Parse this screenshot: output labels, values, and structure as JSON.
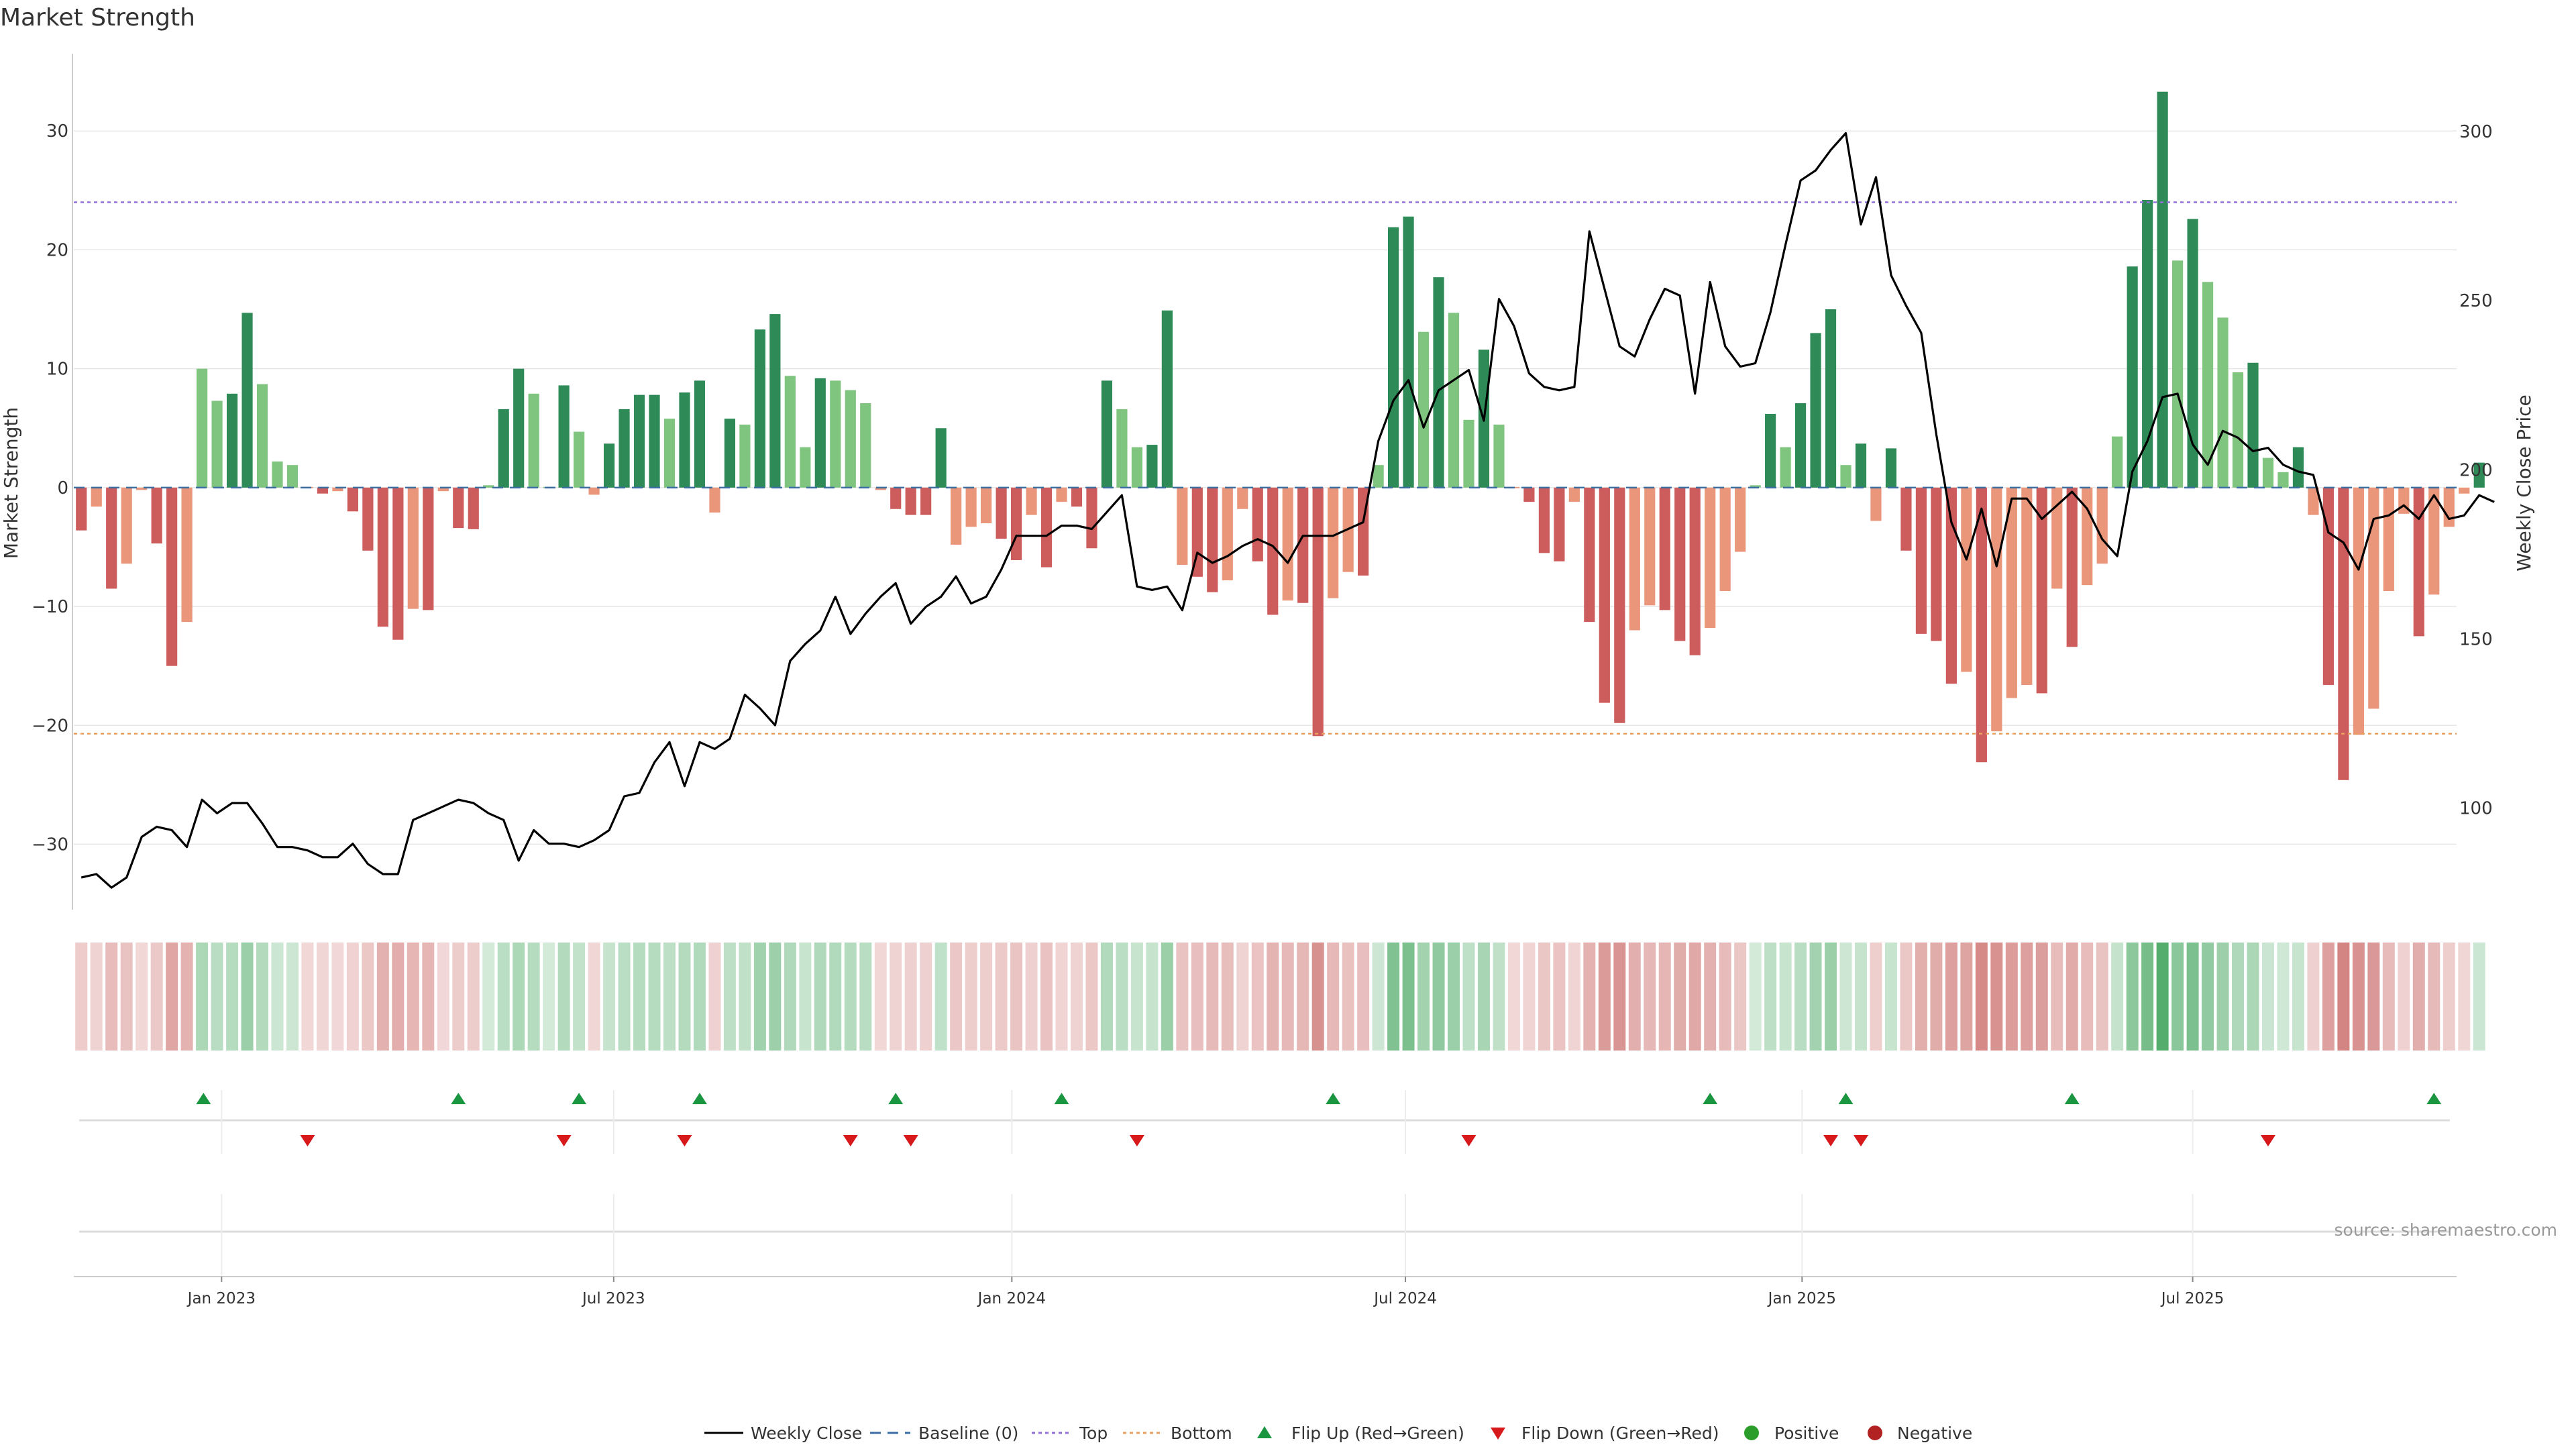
{
  "chart_data": {
    "type": "bar",
    "title": "Market Strength",
    "ylabel": "Market Strength",
    "y2label": "Weekly Close Price",
    "ylim": [
      -35.5,
      36.5
    ],
    "y2lim": [
      70,
      323
    ],
    "yticks": [
      30,
      20,
      10,
      0,
      -10,
      -20,
      -30
    ],
    "ytick_labels": [
      "30",
      "20",
      "10",
      "0",
      "−10",
      "−20",
      "−30"
    ],
    "y2ticks": [
      300,
      250,
      200,
      150,
      100
    ],
    "y2tick_labels": [
      "300",
      "250",
      "200",
      "150",
      "100"
    ],
    "top_threshold": 24,
    "bottom_threshold": -20.7,
    "x_start_week_index": 0,
    "x_end_week_index": 157,
    "date_ticks": [
      {
        "label": "Jan 2023",
        "week": 9.3
      },
      {
        "label": "Jul 2023",
        "week": 35.3
      },
      {
        "label": "Jan 2024",
        "week": 61.7
      },
      {
        "label": "Jul 2024",
        "week": 87.8
      },
      {
        "label": "Jan 2025",
        "week": 114.1
      },
      {
        "label": "Jul 2025",
        "week": 140.0
      }
    ],
    "strength": [
      -3.6,
      -1.6,
      -8.5,
      -6.4,
      -0.2,
      -4.7,
      -15.0,
      -11.3,
      10.0,
      7.3,
      7.9,
      14.7,
      8.7,
      2.2,
      1.9,
      -0.1,
      -0.5,
      -0.3,
      -2.0,
      -5.3,
      -11.7,
      -12.8,
      -10.2,
      -10.3,
      -0.3,
      -3.4,
      -3.5,
      0.2,
      6.6,
      10.0,
      7.9,
      0.1,
      8.6,
      4.7,
      -0.6,
      3.7,
      6.6,
      7.8,
      7.8,
      5.8,
      8.0,
      9.0,
      -2.1,
      5.8,
      5.3,
      13.3,
      14.6,
      9.4,
      3.4,
      9.2,
      9.0,
      8.2,
      7.1,
      -0.2,
      -1.8,
      -2.3,
      -2.3,
      5.0,
      -4.8,
      -3.3,
      -3.0,
      -4.3,
      -6.1,
      -2.3,
      -6.7,
      -1.2,
      -1.6,
      -5.1,
      9.0,
      6.6,
      3.4,
      3.6,
      14.9,
      -6.5,
      -7.5,
      -8.8,
      -7.8,
      -1.8,
      -6.2,
      -10.7,
      -9.5,
      -9.7,
      -20.9,
      -9.3,
      -7.1,
      -7.4,
      1.9,
      21.9,
      22.8,
      13.1,
      17.7,
      14.7,
      5.7,
      11.6,
      5.3,
      -0.1,
      -1.2,
      -5.5,
      -6.2,
      -1.2,
      -11.3,
      -18.1,
      -19.8,
      -12.0,
      -9.9,
      -10.3,
      -12.9,
      -14.1,
      -11.8,
      -8.7,
      -5.4,
      0.2,
      6.2,
      3.4,
      7.1,
      13.0,
      15.0,
      1.9,
      3.7,
      -2.8,
      3.3,
      -5.3,
      -12.3,
      -12.9,
      -16.5,
      -15.5,
      -23.1,
      -20.5,
      -17.7,
      -16.6,
      -17.3,
      -8.5,
      -13.4,
      -8.2,
      -6.4,
      4.3,
      18.6,
      24.2,
      33.3,
      19.1,
      22.6,
      17.3,
      14.3,
      9.7,
      10.5,
      2.5,
      1.3,
      3.4,
      -2.3,
      -16.6,
      -24.6,
      -20.8,
      -18.6,
      -8.7,
      -2.2,
      -12.5,
      -9.0,
      -3.3,
      -0.5,
      2.1
    ],
    "weekly_close": [
      79.5,
      80.5,
      76.5,
      79.5,
      91.5,
      94.5,
      93.5,
      88.5,
      102.5,
      98.5,
      101.5,
      101.5,
      95.5,
      88.5,
      88.5,
      87.5,
      85.5,
      85.5,
      89.5,
      83.5,
      80.5,
      80.5,
      96.5,
      98.5,
      100.5,
      102.5,
      101.5,
      98.5,
      96.5,
      84.5,
      93.5,
      89.5,
      89.5,
      88.5,
      90.5,
      93.5,
      103.5,
      104.5,
      113.5,
      119.5,
      106.5,
      119.5,
      117.5,
      120.5,
      133.5,
      129.5,
      124.5,
      143.5,
      148.5,
      152.5,
      162.5,
      151.5,
      157.5,
      162.5,
      166.5,
      154.5,
      159.5,
      162.5,
      168.5,
      160.5,
      162.5,
      170.5,
      180.5,
      180.5,
      180.5,
      183.5,
      183.5,
      182.5,
      187.5,
      192.5,
      165.5,
      164.5,
      165.5,
      158.5,
      175.5,
      172.5,
      174.5,
      177.5,
      179.5,
      177.5,
      172.5,
      180.5,
      180.5,
      180.5,
      182.5,
      184.5,
      208.5,
      220.5,
      226.5,
      212.5,
      223.5,
      226.5,
      229.5,
      214.5,
      250.5,
      242.5,
      228.5,
      224.5,
      223.5,
      224.5,
      270.5,
      253.5,
      236.5,
      233.5,
      244.5,
      253.5,
      251.5,
      222.5,
      255.5,
      236.5,
      230.5,
      231.5,
      246.5,
      266.5,
      285.5,
      288.5,
      294.5,
      299.5,
      272.5,
      286.5,
      257.5,
      248.5,
      240.5,
      210.5,
      184.5,
      173.5,
      188.5,
      171.5,
      191.5,
      191.5,
      185.5,
      189.5,
      193.5,
      188.5,
      179.5,
      174.5,
      199.5,
      208.5,
      221.5,
      222.5,
      207.5,
      201.5,
      211.5,
      209.5,
      205.5,
      206.5,
      201.5,
      199.5,
      198.5,
      181.5,
      178.5,
      170.5,
      185.5,
      186.5,
      189.5,
      185.5,
      192.5,
      185.5,
      186.5,
      192.5,
      190.5
    ],
    "flip_up_weeks": [
      8.1,
      25.0,
      33.0,
      41.0,
      54.0,
      65.0,
      83.0,
      108.0,
      117.0,
      132.0,
      156.0
    ],
    "flip_down_weeks": [
      15.0,
      32.0,
      40.0,
      51.0,
      55.0,
      70.0,
      92.0,
      116.0,
      118.0,
      145.0
    ],
    "legend_position": "bottom-center",
    "legend": [
      "Weekly Close",
      "Baseline (0)",
      "Top",
      "Bottom",
      "Flip Up (Red→Green)",
      "Flip Down (Green→Red)",
      "Positive",
      "Negative"
    ],
    "colors": {
      "pos_strong": "#2e8b57",
      "pos_weak": "#7fc47f",
      "neg_strong": "#cd5c5c",
      "neg_weak": "#e9967a",
      "close_line": "#000000",
      "baseline": "#3a6ea5",
      "top": "#9370db",
      "bottom": "#e8a060",
      "flip_up": "#1a9641",
      "flip_down": "#d7191c",
      "positive_dot": "#2a9d2a",
      "negative_dot": "#b22222",
      "heat_positive": "#3aa055",
      "heat_negative": "#c0504d"
    },
    "source": "source: sharemaestro.com"
  }
}
